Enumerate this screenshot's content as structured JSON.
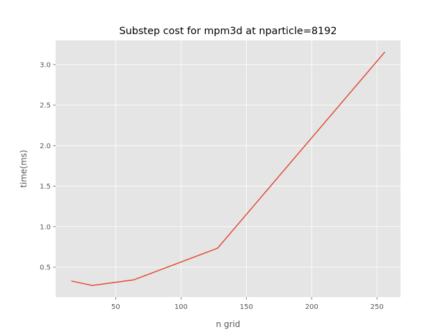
{
  "chart_data": {
    "type": "line",
    "title": "Substep cost for mpm3d at nparticle=8192",
    "xlabel": "n grid",
    "ylabel": "time(ms)",
    "x": [
      16,
      32,
      64,
      128,
      256
    ],
    "series": [
      {
        "values": [
          0.33,
          0.275,
          0.345,
          0.735,
          3.155
        ],
        "color": "#E24A33"
      }
    ],
    "xlim": [
      4,
      268
    ],
    "ylim": [
      0.131,
      3.299
    ],
    "xticks": [
      50,
      100,
      150,
      200,
      250
    ],
    "xtick_labels": [
      "50",
      "100",
      "150",
      "200",
      "250"
    ],
    "yticks": [
      0.5,
      1.0,
      1.5,
      2.0,
      2.5,
      3.0
    ],
    "ytick_labels": [
      "0.5",
      "1.0",
      "1.5",
      "2.0",
      "2.5",
      "3.0"
    ],
    "grid": true,
    "style": {
      "plot_background": "#E5E5E5",
      "grid_color": "#FFFFFF",
      "tick_color": "#555555"
    }
  }
}
